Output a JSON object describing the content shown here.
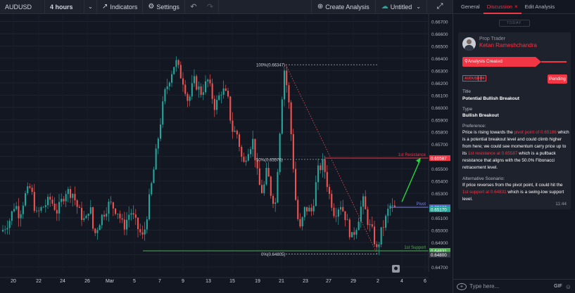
{
  "toolbar": {
    "symbol": "AUDUSD",
    "interval": "4 hours",
    "indicators": "Indicators",
    "settings": "Settings",
    "create_analysis": "Create Analysis",
    "untitled": "Untitled"
  },
  "panel": {
    "tabs": [
      "General",
      "Discussion",
      "Edit Analysis"
    ],
    "today": "TODAY",
    "role": "Prop Trader",
    "author": "Ketan Rameshchandra",
    "status_ribbon": "Analysis Created",
    "tags": [
      "AUDUSD",
      "H4"
    ],
    "pending": "Pending",
    "title_label": "Title",
    "title_value": "Potential Bullish Breakout",
    "type_label": "Type",
    "type_value": "Bullish Breakout",
    "preference_label": "Preference:",
    "pref": {
      "p1": "Price is rising towards the ",
      "h1": "pivot point of 0.65186",
      "p2": " which is a potential breakout level and could climb higher from here; we could see momentum carry price up to its ",
      "h2": "1st resistance at 0.65587",
      "p3": " which is a pullback resistance that aligns with the 50.0% Fibonacci retracement level."
    },
    "alt_label": "Alternative Scenario:",
    "alt": {
      "p1": "If price reverses from the pivot point, it could hit the ",
      "h1": "1st support at 0.64831",
      "p2": " which is a swing-low support level."
    },
    "time": "11:44",
    "input_placeholder": "Type here...",
    "gif": "GIF"
  },
  "chart_data": {
    "type": "candlestick",
    "symbol": "AUDUSD",
    "interval": "4 hours",
    "y_ticks": [
      "0.66700",
      "0.66600",
      "0.66500",
      "0.66400",
      "0.66300",
      "0.66200",
      "0.66100",
      "0.66000",
      "0.65900",
      "0.65800",
      "0.65700",
      "0.65600",
      "0.65500",
      "0.65400",
      "0.65300",
      "0.65200",
      "0.65100",
      "0.65000",
      "0.64900",
      "0.64800",
      "0.64700"
    ],
    "ylim": [
      0.6469,
      0.6672
    ],
    "x_ticks": [
      "20",
      "22",
      "24",
      "26",
      "Mar",
      "5",
      "7",
      "9",
      "13",
      "15",
      "19",
      "21",
      "23",
      "27",
      "29",
      "2",
      "4",
      "6"
    ],
    "levels": [
      {
        "name": "1st Resistance",
        "value": 0.65587,
        "color": "#f23645"
      },
      {
        "name": "Pivot",
        "value": 0.65186,
        "color": "#7b82e8"
      },
      {
        "name": "1st Support",
        "value": 0.64831,
        "color": "#4caf50"
      }
    ],
    "fib": [
      {
        "label": "100%(0.66347)",
        "value": 0.66347
      },
      {
        "label": "50%(0.65576)",
        "value": 0.65576
      },
      {
        "label": "0%(0.64805)",
        "value": 0.64805
      }
    ],
    "price_tags": [
      {
        "text": "0.65587",
        "value": 0.65587,
        "color": "#f23645"
      },
      {
        "text": "0.65186",
        "value": 0.65186,
        "color": "#5b62c9"
      },
      {
        "text": "0.65170",
        "value": 0.6517,
        "color": "#26a69a"
      },
      {
        "text": "0.64831",
        "value": 0.64831,
        "color": "#4caf50"
      },
      {
        "text": "0.64800",
        "value": 0.648,
        "color": "#363a45"
      }
    ],
    "colors": {
      "up": "#26a69a",
      "down": "#ef5350",
      "arrow": "#26d33c"
    }
  }
}
